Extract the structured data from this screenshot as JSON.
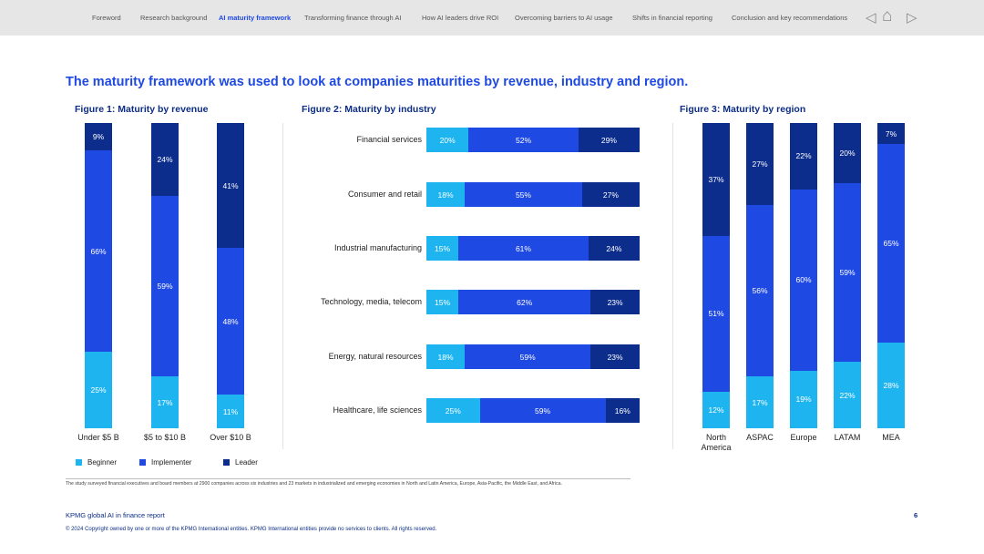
{
  "nav": {
    "items": [
      "Foreword",
      "Research background",
      "AI maturity framework",
      "Transforming finance through AI",
      "How AI leaders drive ROI",
      "Overcoming barriers to AI usage",
      "Shifts in financial reporting",
      "Conclusion and key recommendations"
    ],
    "active": 2
  },
  "title": "The maturity framework was used to look at companies maturities by revenue, industry and region.",
  "colors": {
    "beginner": "#1eb4f0",
    "implementer": "#1e49e2",
    "leader": "#0c2d8c"
  },
  "chart_data": [
    {
      "type": "bar",
      "orientation": "vertical",
      "stacked": true,
      "title": "Figure 1: Maturity by revenue",
      "categories": [
        "Under $5 B",
        "$5 to $10 B",
        "Over $10 B"
      ],
      "series": [
        {
          "name": "Beginner",
          "values": [
            25,
            17,
            11
          ]
        },
        {
          "name": "Implementer",
          "values": [
            66,
            59,
            48
          ]
        },
        {
          "name": "Leader",
          "values": [
            9,
            24,
            41
          ]
        }
      ],
      "unit": "%"
    },
    {
      "type": "bar",
      "orientation": "horizontal",
      "stacked": true,
      "title": "Figure 2: Maturity by industry",
      "categories": [
        "Financial services",
        "Consumer and retail",
        "Industrial manufacturing",
        "Technology, media, telecom",
        "Energy, natural resources",
        "Healthcare, life sciences"
      ],
      "series": [
        {
          "name": "Beginner",
          "values": [
            20,
            18,
            15,
            15,
            18,
            25
          ]
        },
        {
          "name": "Implementer",
          "values": [
            52,
            55,
            61,
            62,
            59,
            59
          ]
        },
        {
          "name": "Leader",
          "values": [
            29,
            27,
            24,
            23,
            23,
            16
          ]
        }
      ],
      "unit": "%"
    },
    {
      "type": "bar",
      "orientation": "vertical",
      "stacked": true,
      "title": "Figure 3: Maturity by region",
      "categories": [
        "North America",
        "ASPAC",
        "Europe",
        "LATAM",
        "MEA"
      ],
      "series": [
        {
          "name": "Beginner",
          "values": [
            12,
            17,
            19,
            22,
            28
          ]
        },
        {
          "name": "Implementer",
          "values": [
            51,
            56,
            60,
            59,
            65
          ]
        },
        {
          "name": "Leader",
          "values": [
            37,
            27,
            22,
            20,
            7
          ]
        }
      ],
      "unit": "%"
    }
  ],
  "legend": [
    "Beginner",
    "Implementer",
    "Leader"
  ],
  "note": "The study surveyed financial executives and board members at 2900 companies across six industries and 23 markets in industrialized and emerging economies in North and Latin America, Europe, Asia-Pacific, the Middle East, and Africa.",
  "footer": {
    "report": "KPMG global AI in finance report",
    "page": "6",
    "copyright": "© 2024 Copyright owned by one or more of the KPMG International entities. KPMG International entities provide no services to clients. All rights reserved."
  }
}
